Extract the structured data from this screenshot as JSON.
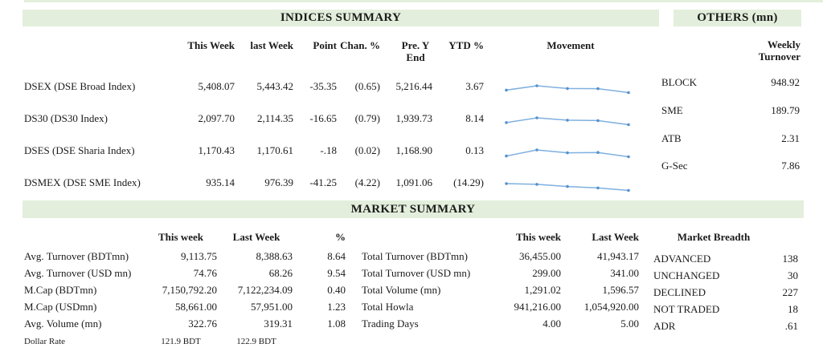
{
  "colors": {
    "band_green": "#e3efdc",
    "spark_line": "#7fb0df",
    "spark_marker": "#5592ce",
    "text": "#1b1b1b"
  },
  "indices": {
    "title": "INDICES SUMMARY",
    "columns": {
      "this_week": "This Week",
      "last_week": "last Week",
      "point": "Point",
      "chan_pct": "Chan. %",
      "pre_y_l1": "Pre. Y",
      "pre_y_l2": "End",
      "ytd_pct": "YTD %",
      "movement": "Movement"
    },
    "rows": [
      {
        "label": "DSEX (DSE Broad Index)",
        "this_week": "5,408.07",
        "last_week": "5,443.42",
        "point": "-35.35",
        "chan_pct": "(0.65)",
        "pre_y_end": "5,216.44",
        "ytd_pct": "3.67",
        "movement": [
          0.4,
          1.0,
          0.62,
          0.6,
          0.05
        ]
      },
      {
        "label": "DS30 (DS30 Index)",
        "this_week": "2,097.70",
        "last_week": "2,114.35",
        "point": "-16.65",
        "chan_pct": "(0.79)",
        "pre_y_end": "1,939.73",
        "ytd_pct": "8.14",
        "movement": [
          0.35,
          1.0,
          0.68,
          0.62,
          0.05
        ]
      },
      {
        "label": "DSES (DSE Sharia Index)",
        "this_week": "1,170.43",
        "last_week": "1,170.61",
        "point": "-.18",
        "chan_pct": "(0.02)",
        "pre_y_end": "1,168.90",
        "ytd_pct": "0.13",
        "movement": [
          0.15,
          1.0,
          0.6,
          0.65,
          0.05
        ]
      },
      {
        "label": "DSMEX (DSE SME Index)",
        "this_week": "935.14",
        "last_week": "976.39",
        "point": "-41.25",
        "chan_pct": "(4.22)",
        "pre_y_end": "1,091.06",
        "ytd_pct": "(14.29)",
        "movement": [
          1.0,
          0.9,
          0.6,
          0.4,
          0.05
        ]
      }
    ]
  },
  "others": {
    "title": "OTHERS (mn)",
    "value_header_l1": "Weekly",
    "value_header_l2": "Turnover",
    "rows": [
      {
        "label": "BLOCK",
        "value": "948.92"
      },
      {
        "label": "SME",
        "value": "189.79"
      },
      {
        "label": "ATB",
        "value": "2.31"
      },
      {
        "label": "G-Sec",
        "value": "7.86"
      }
    ]
  },
  "market_summary": {
    "title": "MARKET SUMMARY",
    "left": {
      "col_this": "This week",
      "col_last": "Last Week",
      "col_pct": "%",
      "rows": [
        {
          "label": "Avg. Turnover (BDTmn)",
          "this_week": "9,113.75",
          "last_week": "8,388.63",
          "pct": "8.64"
        },
        {
          "label": "Avg. Turnover (USD mn)",
          "this_week": "74.76",
          "last_week": "68.26",
          "pct": "9.54"
        },
        {
          "label": "M.Cap (BDTmn)",
          "this_week": "7,150,792.20",
          "last_week": "7,122,234.09",
          "pct": "0.40"
        },
        {
          "label": "M.Cap (USDmn)",
          "this_week": "58,661.00",
          "last_week": "57,951.00",
          "pct": "1.23"
        },
        {
          "label": "Avg. Volume (mn)",
          "this_week": "322.76",
          "last_week": "319.31",
          "pct": "1.08"
        }
      ],
      "dollar_rate": {
        "label": "Dollar Rate",
        "this_week": "121.9 BDT",
        "last_week": "122.9 BDT"
      }
    },
    "middle": {
      "col_this": "This week",
      "col_last": "Last Week",
      "rows": [
        {
          "label": "Total Turnover (BDTmn)",
          "this_week": "36,455.00",
          "last_week": "41,943.17"
        },
        {
          "label": "Total Turnover (USD mn)",
          "this_week": "299.00",
          "last_week": "341.00"
        },
        {
          "label": "Total Volume (mn)",
          "this_week": "1,291.02",
          "last_week": "1,596.57"
        },
        {
          "label": "Total Howla",
          "this_week": "941,216.00",
          "last_week": "1,054,920.00"
        },
        {
          "label": "Trading Days",
          "this_week": "4.00",
          "last_week": "5.00"
        }
      ]
    },
    "breadth": {
      "title": "Market Breadth",
      "rows": [
        {
          "label": "ADVANCED",
          "value": "138"
        },
        {
          "label": "UNCHANGED",
          "value": "30"
        },
        {
          "label": "DECLINED",
          "value": "227"
        },
        {
          "label": "NOT TRADED",
          "value": "18"
        },
        {
          "label": "ADR",
          "value": ".61"
        }
      ]
    }
  }
}
